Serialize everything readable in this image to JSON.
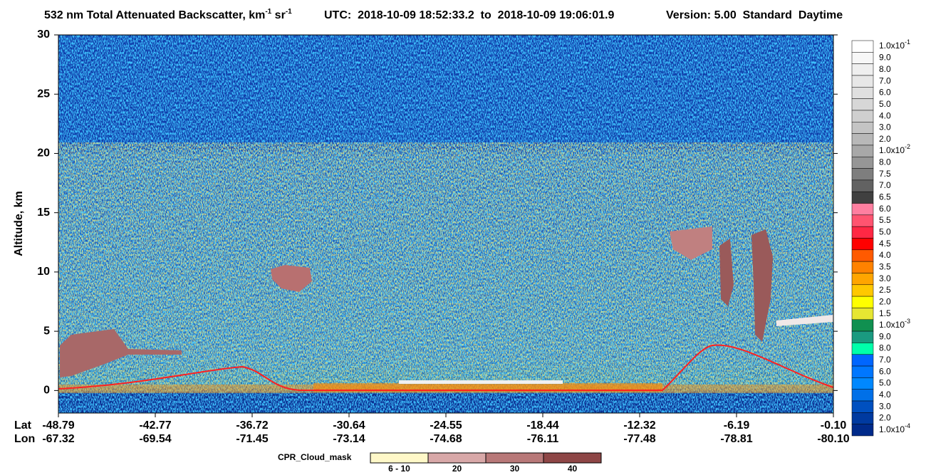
{
  "header": {
    "title_parts": [
      "532 nm Total Attenuated Backscatter, km",
      "-1",
      " sr",
      "-1"
    ],
    "utc": "UTC:  2018-10-09 18:52:33.2  to  2018-10-09 19:06:01.9",
    "version": "Version: 5.00  Standard  Daytime"
  },
  "chart_data": {
    "type": "heatmap",
    "ylabel": "Altitude, km",
    "ylim": [
      -1.9,
      30
    ],
    "yticks": [
      0,
      5,
      10,
      15,
      20,
      25,
      30
    ],
    "x_rows": [
      {
        "name": "Lat",
        "labels": [
          "-48.79",
          "-42.77",
          "-36.72",
          "-30.64",
          "-24.55",
          "-18.44",
          "-12.32",
          "-6.19",
          "-0.10"
        ]
      },
      {
        "name": "Lon",
        "labels": [
          "-67.32",
          "-69.54",
          "-71.45",
          "-73.14",
          "-74.68",
          "-76.11",
          "-77.48",
          "-78.81",
          "-80.10"
        ]
      }
    ],
    "colorbar": {
      "labels": [
        {
          "base": "1.0x10",
          "exp": "-1"
        },
        "9.0",
        "8.0",
        "7.0",
        "6.0",
        "5.0",
        "4.0",
        "3.0",
        "2.0",
        {
          "base": "1.0x10",
          "exp": "-2"
        },
        "8.0",
        "7.5",
        "7.0",
        "6.5",
        "6.0",
        "5.5",
        "5.0",
        "4.5",
        "4.0",
        "3.5",
        "3.0",
        "2.5",
        "2.0",
        "1.5",
        {
          "base": "1.0x10",
          "exp": "-3"
        },
        "9.0",
        "8.0",
        "7.0",
        "6.0",
        "5.0",
        "4.0",
        "3.0",
        "2.0",
        {
          "base": "1.0x10",
          "exp": "-4"
        }
      ],
      "colors": [
        "#ffffff",
        "#f7f7f7",
        "#efefef",
        "#e7e7e7",
        "#dfdfdf",
        "#d7d7d7",
        "#cfcfcf",
        "#c4c4c4",
        "#b8b8b8",
        "#a8a8a8",
        "#969696",
        "#7e7e7e",
        "#626262",
        "#404040",
        "#ff7fa0",
        "#ff5470",
        "#ff2844",
        "#ff0000",
        "#ff5a00",
        "#ff8200",
        "#ffa500",
        "#ffc800",
        "#ffff00",
        "#e6e632",
        "#109050",
        "#1a9a80",
        "#00ffaa",
        "#0066ff",
        "#0077ff",
        "#0088ff",
        "#0070e8",
        "#0050c0",
        "#003aa0",
        "#002a8a"
      ]
    },
    "cpr_legend": {
      "title": "CPR_Cloud_mask",
      "labels": [
        "6 - 10",
        "20",
        "30",
        "40"
      ],
      "colors": [
        "#fff8c8",
        "#d8a8a8",
        "#b87878",
        "#8e4646"
      ]
    }
  }
}
